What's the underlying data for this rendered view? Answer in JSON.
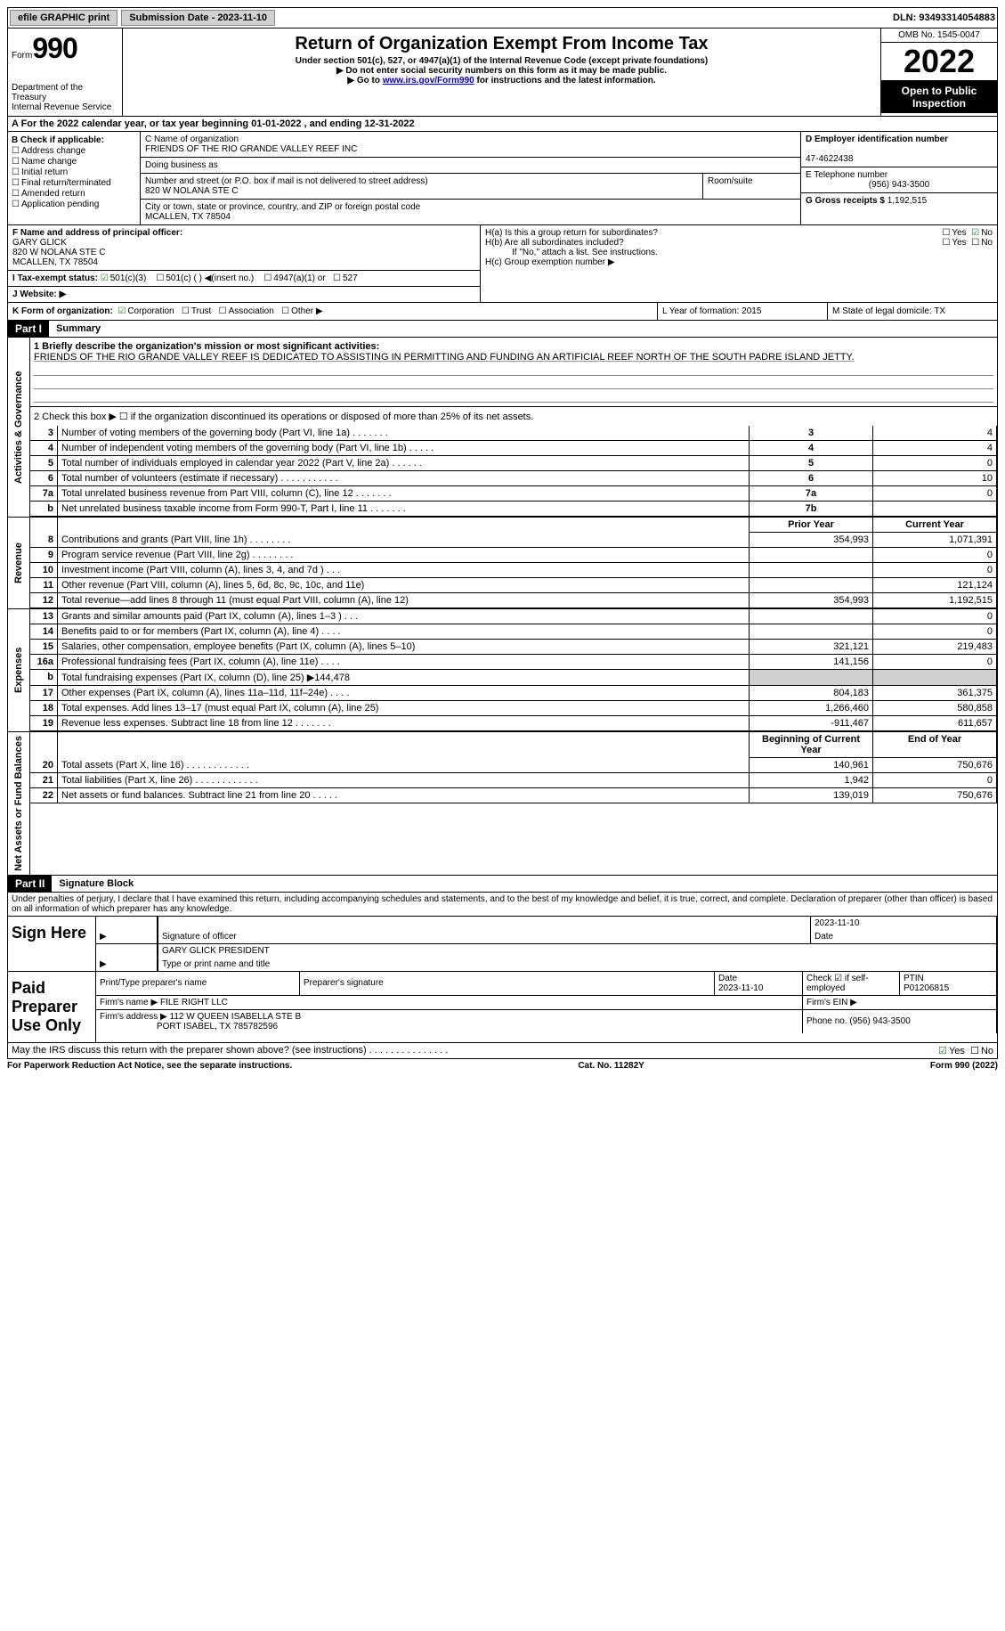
{
  "topbar": {
    "efile": "efile GRAPHIC print",
    "submission_label": "Submission Date - 2023-11-10",
    "dln": "DLN: 93493314054883"
  },
  "header": {
    "form_prefix": "Form",
    "form_number": "990",
    "dept": "Department of the Treasury",
    "irs": "Internal Revenue Service",
    "title": "Return of Organization Exempt From Income Tax",
    "subtitle": "Under section 501(c), 527, or 4947(a)(1) of the Internal Revenue Code (except private foundations)",
    "note1": "▶ Do not enter social security numbers on this form as it may be made public.",
    "note2_pre": "▶ Go to ",
    "note2_link": "www.irs.gov/Form990",
    "note2_post": " for instructions and the latest information.",
    "omb": "OMB No. 1545-0047",
    "year": "2022",
    "inspect": "Open to Public Inspection"
  },
  "line_a": "A For the 2022 calendar year, or tax year beginning 01-01-2022      , and ending 12-31-2022",
  "section_b": {
    "label": "B Check if applicable:",
    "opts": [
      "Address change",
      "Name change",
      "Initial return",
      "Final return/terminated",
      "Amended return",
      "Application pending"
    ]
  },
  "section_c": {
    "name_label": "C Name of organization",
    "name": "FRIENDS OF THE RIO GRANDE VALLEY REEF INC",
    "dba_label": "Doing business as",
    "dba": "",
    "addr_label": "Number and street (or P.O. box if mail is not delivered to street address)",
    "room_label": "Room/suite",
    "addr": "820 W NOLANA STE C",
    "city_label": "City or town, state or province, country, and ZIP or foreign postal code",
    "city": "MCALLEN, TX  78504"
  },
  "section_d": {
    "ein_label": "D Employer identification number",
    "ein": "47-4622438",
    "phone_label": "E Telephone number",
    "phone": "(956) 943-3500",
    "gross_label": "G Gross receipts $",
    "gross": "1,192,515"
  },
  "section_f": {
    "label": "F Name and address of principal officer:",
    "name": "GARY GLICK",
    "addr1": "820 W NOLANA STE C",
    "addr2": "MCALLEN, TX  78504"
  },
  "section_h": {
    "a_label": "H(a)  Is this a group return for subordinates?",
    "yes": "Yes",
    "no": "No",
    "b_label": "H(b)  Are all subordinates included?",
    "b_note": "If \"No,\" attach a list. See instructions.",
    "c_label": "H(c)  Group exemption number ▶"
  },
  "section_i": {
    "label": "I   Tax-exempt status:",
    "o1": "501(c)(3)",
    "o2": "501(c) (   ) ◀(insert no.)",
    "o3": "4947(a)(1) or",
    "o4": "527"
  },
  "section_j": {
    "label": "J   Website: ▶"
  },
  "section_k": {
    "label": "K Form of organization:",
    "o1": "Corporation",
    "o2": "Trust",
    "o3": "Association",
    "o4": "Other ▶"
  },
  "section_l": {
    "label": "L Year of formation: 2015"
  },
  "section_m": {
    "label": "M State of legal domicile: TX"
  },
  "part1": {
    "header": "Part I",
    "title": "Summary",
    "q1_label": "1   Briefly describe the organization's mission or most significant activities:",
    "mission": "FRIENDS OF THE RIO GRANDE VALLEY REEF IS DEDICATED TO ASSISTING IN PERMITTING AND FUNDING AN ARTIFICIAL REEF NORTH OF THE SOUTH PADRE ISLAND JETTY.",
    "q2": "2   Check this box ▶ ☐ if the organization discontinued its operations or disposed of more than 25% of its net assets.",
    "sections": {
      "governance": "Activities & Governance",
      "revenue": "Revenue",
      "expenses": "Expenses",
      "netassets": "Net Assets or Fund Balances"
    },
    "col_prior": "Prior Year",
    "col_current": "Current Year",
    "col_begin": "Beginning of Current Year",
    "col_end": "End of Year",
    "rows_gov": [
      {
        "n": "3",
        "d": "Number of voting members of the governing body (Part VI, line 1a)   .    .    .    .    .    .    .",
        "b": "3",
        "v": "4"
      },
      {
        "n": "4",
        "d": "Number of independent voting members of the governing body (Part VI, line 1b)   .    .    .    .    .",
        "b": "4",
        "v": "4"
      },
      {
        "n": "5",
        "d": "Total number of individuals employed in calendar year 2022 (Part V, line 2a)   .    .    .    .    .    .",
        "b": "5",
        "v": "0"
      },
      {
        "n": "6",
        "d": "Total number of volunteers (estimate if necessary)    .    .    .    .    .    .    .    .    .    .    .",
        "b": "6",
        "v": "10"
      },
      {
        "n": "7a",
        "d": "Total unrelated business revenue from Part VIII, column (C), line 12   .    .    .    .    .    .    .",
        "b": "7a",
        "v": "0"
      },
      {
        "n": "b",
        "d": "Net unrelated business taxable income from Form 990-T, Part I, line 11   .    .    .    .    .    .    .",
        "b": "7b",
        "v": ""
      }
    ],
    "rows_rev": [
      {
        "n": "8",
        "d": "Contributions and grants (Part VIII, line 1h)   .    .    .    .    .    .    .    .",
        "p": "354,993",
        "c": "1,071,391"
      },
      {
        "n": "9",
        "d": "Program service revenue (Part VIII, line 2g)    .    .    .    .    .    .    .    .",
        "p": "",
        "c": "0"
      },
      {
        "n": "10",
        "d": "Investment income (Part VIII, column (A), lines 3, 4, and 7d )    .    .    .",
        "p": "",
        "c": "0"
      },
      {
        "n": "11",
        "d": "Other revenue (Part VIII, column (A), lines 5, 6d, 8c, 9c, 10c, and 11e)",
        "p": "",
        "c": "121,124"
      },
      {
        "n": "12",
        "d": "Total revenue—add lines 8 through 11 (must equal Part VIII, column (A), line 12)",
        "p": "354,993",
        "c": "1,192,515"
      }
    ],
    "rows_exp": [
      {
        "n": "13",
        "d": "Grants and similar amounts paid (Part IX, column (A), lines 1–3 )   .    .    .",
        "p": "",
        "c": "0"
      },
      {
        "n": "14",
        "d": "Benefits paid to or for members (Part IX, column (A), line 4)   .    .    .    .",
        "p": "",
        "c": "0"
      },
      {
        "n": "15",
        "d": "Salaries, other compensation, employee benefits (Part IX, column (A), lines 5–10)",
        "p": "321,121",
        "c": "219,483"
      },
      {
        "n": "16a",
        "d": "Professional fundraising fees (Part IX, column (A), line 11e)   .    .    .    .",
        "p": "141,156",
        "c": "0"
      },
      {
        "n": "b",
        "d": "Total fundraising expenses (Part IX, column (D), line 25) ▶144,478",
        "p": "shaded",
        "c": "shaded"
      },
      {
        "n": "17",
        "d": "Other expenses (Part IX, column (A), lines 11a–11d, 11f–24e)   .    .    .    .",
        "p": "804,183",
        "c": "361,375"
      },
      {
        "n": "18",
        "d": "Total expenses. Add lines 13–17 (must equal Part IX, column (A), line 25)",
        "p": "1,266,460",
        "c": "580,858"
      },
      {
        "n": "19",
        "d": "Revenue less expenses. Subtract line 18 from line 12   .    .    .    .    .    .    .",
        "p": "-911,467",
        "c": "611,657"
      }
    ],
    "rows_net": [
      {
        "n": "20",
        "d": "Total assets (Part X, line 16)   .    .    .    .    .    .    .    .    .    .    .    .",
        "p": "140,961",
        "c": "750,676"
      },
      {
        "n": "21",
        "d": "Total liabilities (Part X, line 26)   .    .    .    .    .    .    .    .    .    .    .    .",
        "p": "1,942",
        "c": "0"
      },
      {
        "n": "22",
        "d": "Net assets or fund balances. Subtract line 21 from line 20   .    .    .    .    .",
        "p": "139,019",
        "c": "750,676"
      }
    ]
  },
  "part2": {
    "header": "Part II",
    "title": "Signature Block",
    "declare": "Under penalties of perjury, I declare that I have examined this return, including accompanying schedules and statements, and to the best of my knowledge and belief, it is true, correct, and complete. Declaration of preparer (other than officer) is based on all information of which preparer has any knowledge.",
    "sign_here": "Sign Here",
    "sig_officer": "Signature of officer",
    "sig_date": "2023-11-10",
    "date_label": "Date",
    "officer_name": "GARY GLICK  PRESIDENT",
    "officer_type": "Type or print name and title",
    "paid": "Paid Preparer Use Only",
    "p_name_label": "Print/Type preparer's name",
    "p_sig_label": "Preparer's signature",
    "p_date_label": "Date",
    "p_date": "2023-11-10",
    "p_check": "Check ☑ if self-employed",
    "ptin_label": "PTIN",
    "ptin": "P01206815",
    "firm_name_label": "Firm's name    ▶",
    "firm_name": "FILE RIGHT LLC",
    "firm_ein": "Firm's EIN ▶",
    "firm_addr_label": "Firm's address ▶",
    "firm_addr": "112 W QUEEN ISABELLA STE B",
    "firm_city": "PORT ISABEL, TX  785782596",
    "firm_phone_label": "Phone no.",
    "firm_phone": "(956) 943-3500",
    "discuss": "May the IRS discuss this return with the preparer shown above? (see instructions)   .    .    .    .    .    .    .    .    .    .    .    .    .    .    ."
  },
  "footer": {
    "paperwork": "For Paperwork Reduction Act Notice, see the separate instructions.",
    "cat": "Cat. No. 11282Y",
    "form": "Form 990 (2022)"
  }
}
